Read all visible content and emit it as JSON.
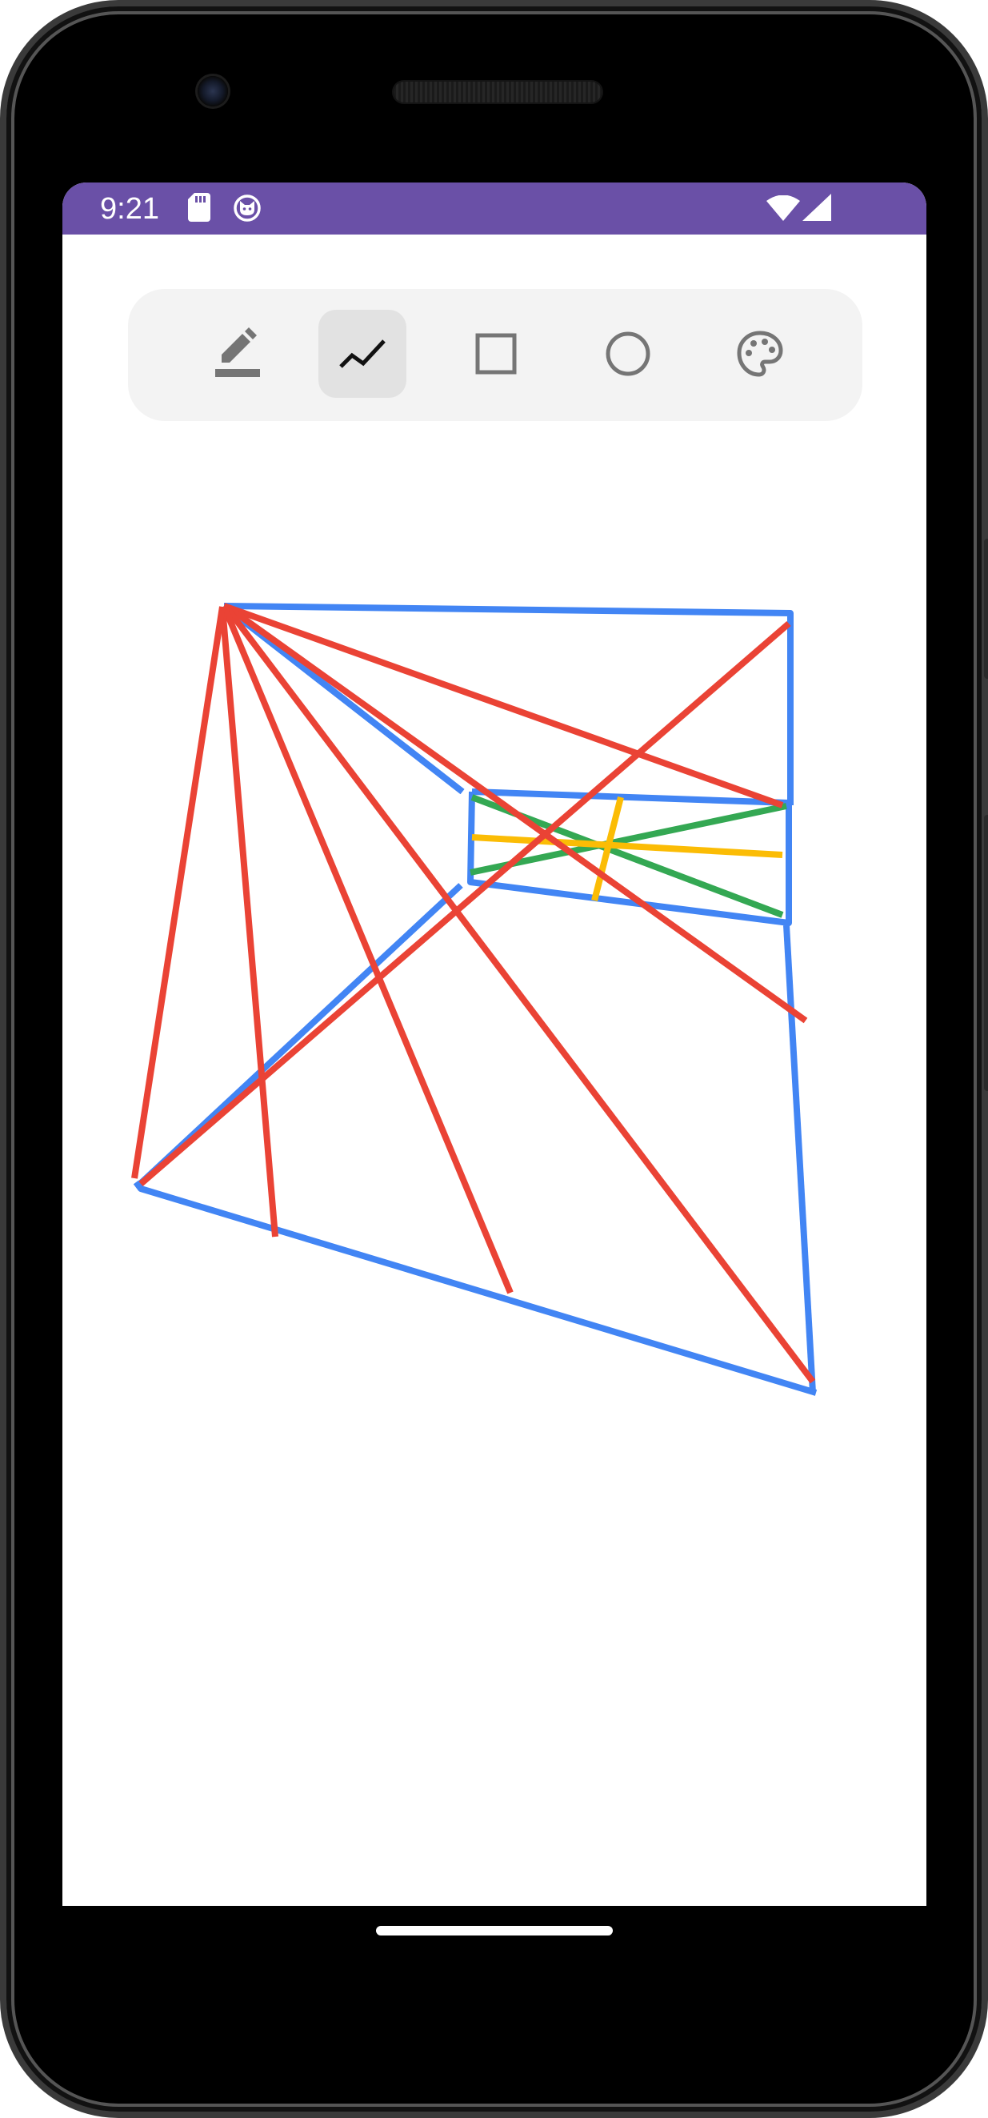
{
  "status_bar": {
    "time": "9:21",
    "background": "#6a50a7",
    "icons": [
      "sd-card-icon",
      "cat-face-icon",
      "wifi-icon",
      "cell-signal-icon"
    ]
  },
  "toolbar": {
    "tools": [
      {
        "name": "pen-tool",
        "icon": "pencil-icon",
        "selected": false
      },
      {
        "name": "polyline-tool",
        "icon": "polyline-icon",
        "selected": true
      },
      {
        "name": "rectangle-tool",
        "icon": "square-icon",
        "selected": false
      },
      {
        "name": "circle-tool",
        "icon": "circle-icon",
        "selected": false
      },
      {
        "name": "color-palette-tool",
        "icon": "palette-icon",
        "selected": false
      }
    ]
  },
  "drawing": {
    "stroke_colors": {
      "blue": "#4285f4",
      "red": "#ea4335",
      "green": "#34a853",
      "yellow": "#fbbc05"
    }
  }
}
